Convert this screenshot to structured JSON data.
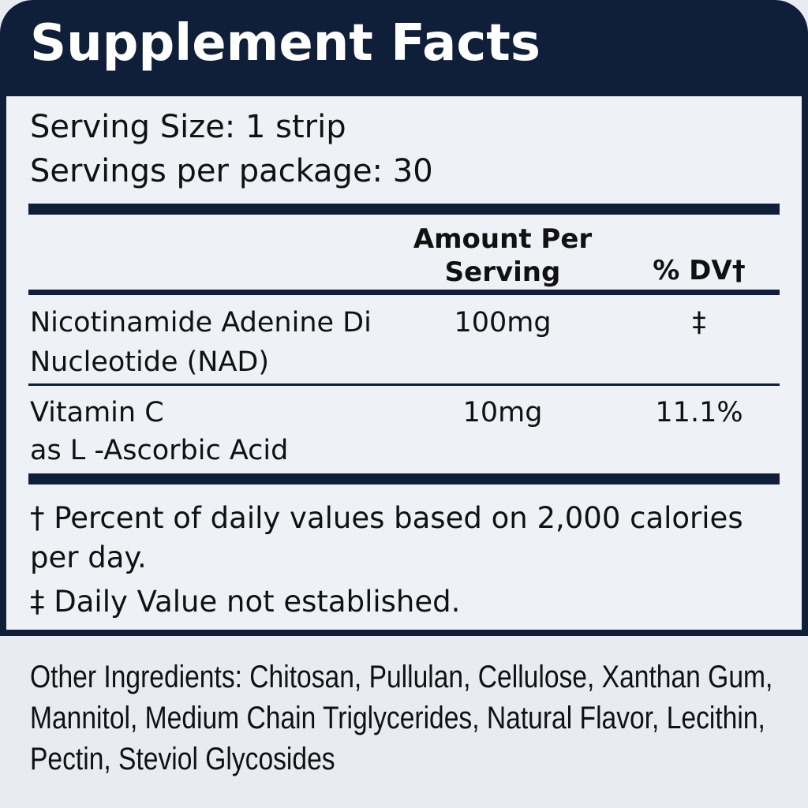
{
  "header": {
    "title": "Supplement Facts"
  },
  "serving": {
    "size": "Serving Size: 1 strip",
    "per_package": "Servings per package: 30"
  },
  "table": {
    "columns": [
      "Amount Per Serving",
      "% DV†"
    ],
    "rows": [
      {
        "name": "Nicotinamide Adenine Di Nucleotide (NAD)",
        "amount": "100mg",
        "dv": "‡"
      },
      {
        "name": "Vitamin C",
        "detail": "as L -Ascorbic Acid",
        "amount": "10mg",
        "dv": "11.1%"
      }
    ]
  },
  "footnotes": [
    "† Percent of daily values based on 2,000 calories per day.",
    "‡ Daily Value not established."
  ],
  "other_ingredients": "Other Ingredients: Chitosan, Pullulan, Cellulose, Xanthan Gum, Mannitol, Medium Chain Triglycerides, Natural Flavor, Lecithin, Pectin, Steviol Glycosides"
}
